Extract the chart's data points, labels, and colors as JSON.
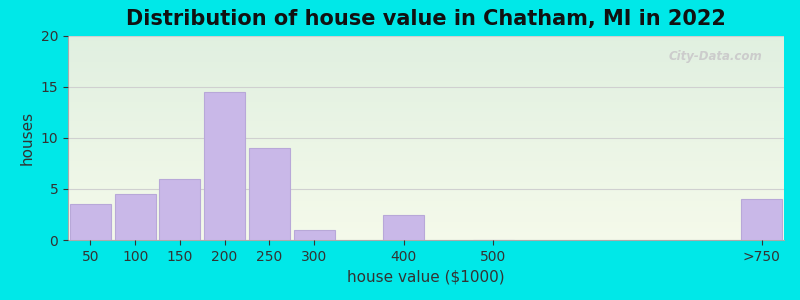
{
  "title": "Distribution of house value in Chatham, MI in 2022",
  "xlabel": "house value ($1000)",
  "ylabel": "houses",
  "categories": [
    "50",
    "100",
    "150",
    "200",
    "250",
    "300",
    "400",
    "500",
    ">750"
  ],
  "values": [
    3.5,
    4.5,
    6.0,
    14.5,
    9.0,
    1.0,
    2.5,
    0.0,
    4.0
  ],
  "bar_color": "#c9b8e8",
  "bar_edgecolor": "#b8a8d8",
  "ylim": [
    0,
    20
  ],
  "yticks": [
    0,
    5,
    10,
    15,
    20
  ],
  "outer_bg": "#00e8e8",
  "grid_color": "#d0d0d0",
  "title_fontsize": 15,
  "axis_label_fontsize": 11,
  "tick_fontsize": 10,
  "watermark": "City-Data.com",
  "bg_top_color": "#eaf5e0",
  "bg_bottom_color": "#d8f0e8"
}
